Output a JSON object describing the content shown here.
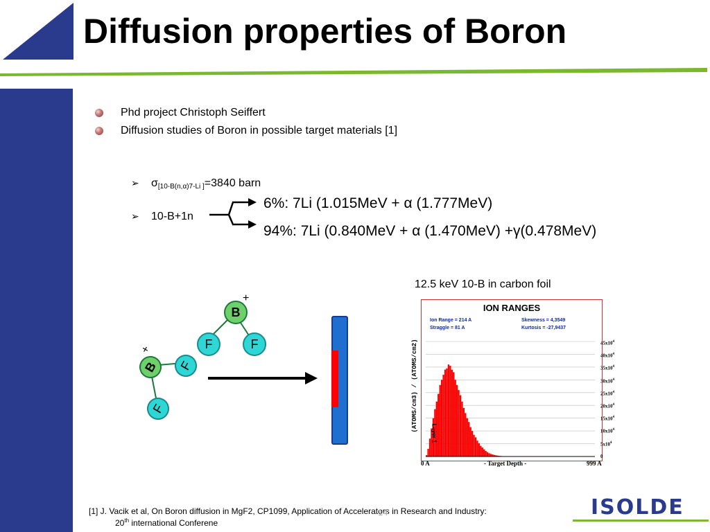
{
  "header": {
    "title": "Diffusion properties of Boron"
  },
  "bullets": [
    "Phd project Christoph Seiffert",
    "Diffusion studies of Boron in possible target materials [1]"
  ],
  "cross_section": {
    "symbol": "σ",
    "subscript": "[10-B(n,α)7-Li ]",
    "value": "=3840 barn"
  },
  "reaction": {
    "label": "10-B+1n",
    "branch1": "6%:  7Li (1.015MeV + α (1.777MeV)",
    "branch2": "94%: 7Li (0.840MeV + α (1.470MeV) +γ(0.478MeV)"
  },
  "diagram": {
    "mol1": {
      "center": "B",
      "charge": "+",
      "left": "F",
      "right": "F"
    },
    "mol2": {
      "center": "B",
      "charge": "+",
      "upper": "F",
      "lower": "F"
    }
  },
  "chart_caption": "12.5 keV 10-B in carbon foil",
  "chart": {
    "title": "ION RANGES",
    "stats": {
      "ion_range": "Ion Range   =   214 A",
      "straggle": "Straggle     =     81 A",
      "skewness": "Skewness    = 4,3549",
      "kurtosis": "Kurtosis     = -27,9437"
    },
    "ylabel": "(ATOMS/cm3) / (ATOMS/cm2)",
    "inner_label": "Layer 1",
    "xlabel": "- Target Depth -",
    "x_min_label": "0 A",
    "x_max_label": "999 A",
    "yticks": [
      {
        "base": "45x10",
        "exp": "4"
      },
      {
        "base": "40x10",
        "exp": "4"
      },
      {
        "base": "35x10",
        "exp": "4"
      },
      {
        "base": "30x10",
        "exp": "4"
      },
      {
        "base": "25x10",
        "exp": "4"
      },
      {
        "base": "20x10",
        "exp": "4"
      },
      {
        "base": "15x10",
        "exp": "4"
      },
      {
        "base": "10x10",
        "exp": "4"
      },
      {
        "base": "5x10",
        "exp": "4"
      },
      {
        "base": "0",
        "exp": ""
      }
    ]
  },
  "chart_data": {
    "type": "bar",
    "title": "ION RANGES",
    "xlabel": "- Target Depth -",
    "ylabel": "(ATOMS/cm3) / (ATOMS/cm2)",
    "x_unit": "A",
    "xlim": [
      0,
      999
    ],
    "ylim": [
      0,
      450000
    ],
    "x": [
      0,
      10,
      20,
      30,
      40,
      50,
      60,
      70,
      80,
      90,
      100,
      110,
      120,
      130,
      140,
      150,
      160,
      170,
      180,
      190,
      200,
      210,
      220,
      230,
      240,
      250,
      260,
      270,
      280,
      290,
      300,
      310,
      320,
      330,
      340,
      350,
      360,
      370,
      380,
      390,
      400,
      410,
      420,
      430,
      440,
      450,
      460,
      470,
      480,
      490,
      500
    ],
    "values": [
      5000,
      30000,
      70000,
      110000,
      150000,
      185000,
      215000,
      245000,
      280000,
      300000,
      320000,
      340000,
      345000,
      360000,
      355000,
      340000,
      330000,
      300000,
      280000,
      260000,
      240000,
      215000,
      190000,
      170000,
      150000,
      135000,
      115000,
      100000,
      85000,
      75000,
      62000,
      52000,
      42000,
      35000,
      28000,
      22000,
      17000,
      13000,
      10000,
      8000,
      6000,
      4500,
      3500,
      2500,
      1800,
      1200,
      900,
      600,
      400,
      250,
      100
    ],
    "color": "#ff0000",
    "grid": true
  },
  "footer": {
    "ref_prefix": "[1] J. Vacik et al, On Boron diffusion in MgF2, CP1099, Application of Accelerators in Research and Industry:",
    "ref_line2_a": "20",
    "ref_line2_sup": "th",
    "ref_line2_b": " international Conferene",
    "page_number": "14",
    "logo": "ISOLDE"
  },
  "colors": {
    "blue": "#2a3a8c",
    "green": "#7ab830",
    "red": "#ff0000"
  }
}
